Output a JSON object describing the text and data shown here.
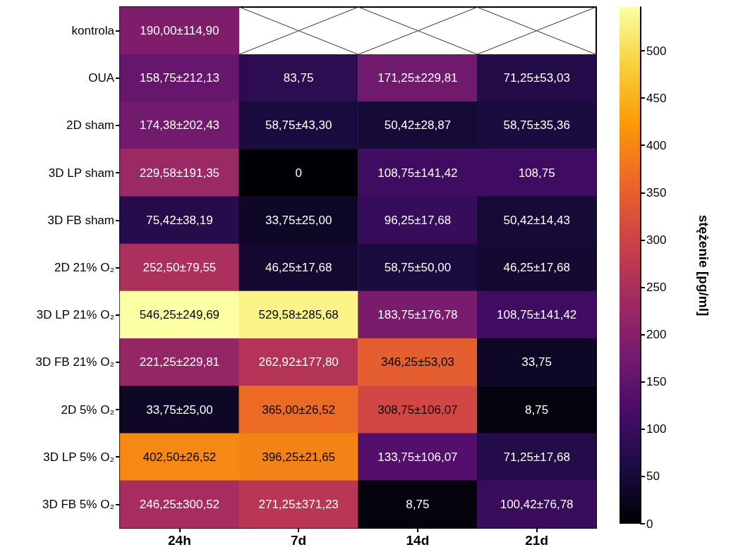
{
  "chart_data": {
    "type": "heatmap",
    "clabel": "stężenie [pg/ml]",
    "categories": [
      "24h",
      "7d",
      "14d",
      "21d"
    ],
    "y_categories": [
      "kontrola",
      "OUA",
      "2D sham",
      "3D LP sham",
      "3D FB sham",
      "2D 21% O₂",
      "3D LP 21% O₂",
      "3D FB 21% O₂",
      "2D 5% O₂",
      "3D LP 5% O₂",
      "3D FB 5% O₂"
    ],
    "cells": [
      [
        190.0,
        null,
        null,
        null
      ],
      [
        158.75,
        83.75,
        171.25,
        71.25
      ],
      [
        174.38,
        58.75,
        50.42,
        58.75
      ],
      [
        229.58,
        0,
        108.75,
        108.75
      ],
      [
        75.42,
        33.75,
        96.25,
        50.42
      ],
      [
        252.5,
        46.25,
        58.75,
        46.25
      ],
      [
        546.25,
        529.58,
        183.75,
        108.75
      ],
      [
        221.25,
        262.92,
        346.25,
        33.75
      ],
      [
        33.75,
        365.0,
        308.75,
        8.75
      ],
      [
        402.5,
        396.25,
        133.75,
        71.25
      ],
      [
        246.25,
        271.25,
        8.75,
        100.42
      ]
    ],
    "cell_labels": [
      [
        "190,00±114,90",
        null,
        null,
        null
      ],
      [
        "158,75±212,13",
        "83,75",
        "171,25±229,81",
        "71,25±53,03"
      ],
      [
        "174,38±202,43",
        "58,75±43,30",
        "50,42±28,87",
        "58,75±35,36"
      ],
      [
        "229,58±191,35",
        "0",
        "108,75±141,42",
        "108,75"
      ],
      [
        "75,42±38,19",
        "33,75±25,00",
        "96,25±17,68",
        "50,42±14,43"
      ],
      [
        "252,50±79,55",
        "46,25±17,68",
        "58,75±50,00",
        "46,25±17,68"
      ],
      [
        "546,25±249,69",
        "529,58±285,68",
        "183,75±176,78",
        "108,75±141,42"
      ],
      [
        "221,25±229,81",
        "262,92±177,80",
        "346,25±53,03",
        "33,75"
      ],
      [
        "33,75±25,00",
        "365,00±26,52",
        "308,75±106,07",
        "8,75"
      ],
      [
        "402,50±26,52",
        "396,25±21,65",
        "133,75±106,07",
        "71,25±17,68"
      ],
      [
        "246,25±300,52",
        "271,25±371,23",
        "8,75",
        "100,42±76,78"
      ]
    ],
    "clim": [
      0,
      546.25
    ],
    "cticks": [
      0,
      50,
      100,
      150,
      200,
      250,
      300,
      350,
      400,
      450,
      500
    ]
  }
}
